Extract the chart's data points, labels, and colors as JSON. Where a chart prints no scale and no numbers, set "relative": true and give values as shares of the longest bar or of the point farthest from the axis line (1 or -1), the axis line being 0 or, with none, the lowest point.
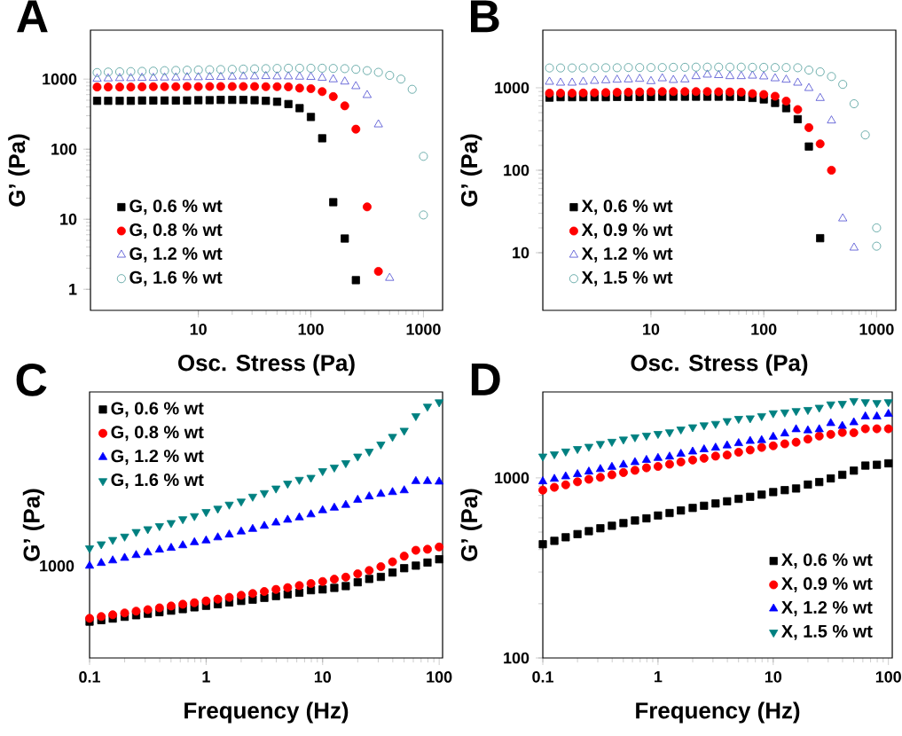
{
  "chart_data": [
    {
      "type": "scatter",
      "title": "A",
      "xlabel": "Osc. Stress (Pa)",
      "ylabel": "G’ (Pa)",
      "log": "xy",
      "legend": "bottom left",
      "xlim": [
        1.1,
        1480
      ],
      "ylim": [
        0.5,
        5000
      ],
      "xticks": [
        10,
        100,
        1000
      ],
      "yticks": [
        1,
        10,
        100,
        1000
      ],
      "series": [
        {
          "name": "G, 0.6 % wt",
          "color": "#000000",
          "marker": "square",
          "x": [
            1.26,
            1.58,
            2,
            2.51,
            3.16,
            3.98,
            5.01,
            6.31,
            7.94,
            10,
            12.6,
            15.8,
            20,
            25.1,
            31.6,
            39.8,
            50.1,
            63.1,
            79.4,
            100,
            126,
            158,
            200,
            251
          ],
          "values": [
            490,
            490,
            490,
            490,
            495,
            495,
            495,
            495,
            495,
            500,
            500,
            505,
            505,
            505,
            500,
            490,
            475,
            440,
            385,
            288,
            143,
            17.5,
            5.3,
            1.35
          ]
        },
        {
          "name": "G, 0.8 % wt",
          "color": "#ff0000",
          "marker": "circle",
          "x": [
            1.26,
            1.58,
            2,
            2.51,
            3.16,
            3.98,
            5.01,
            6.31,
            7.94,
            10,
            12.6,
            15.8,
            20,
            25.1,
            31.6,
            39.8,
            50.1,
            63.1,
            79.4,
            100,
            126,
            158,
            200,
            251,
            316,
            398
          ],
          "values": [
            770,
            770,
            770,
            770,
            775,
            780,
            780,
            780,
            785,
            780,
            785,
            785,
            785,
            785,
            785,
            780,
            780,
            775,
            743,
            730,
            663,
            563,
            415,
            193,
            15,
            1.8
          ]
        },
        {
          "name": "G, 1.2 % wt",
          "color": "#4a4ad0",
          "marker": "triangle-open",
          "x": [
            1.26,
            1.58,
            2,
            2.51,
            3.16,
            3.98,
            5.01,
            6.31,
            7.94,
            10,
            12.6,
            15.8,
            20,
            25.1,
            31.6,
            39.8,
            50.1,
            63.1,
            79.4,
            100,
            126,
            158,
            200,
            251,
            316,
            398,
            501
          ],
          "values": [
            1010,
            1020,
            1030,
            1030,
            1040,
            1040,
            1050,
            1050,
            1060,
            1060,
            1070,
            1070,
            1080,
            1090,
            1090,
            1100,
            1090,
            1090,
            1080,
            1070,
            1040,
            990,
            920,
            790,
            590,
            225,
            1.45
          ]
        },
        {
          "name": "G, 1.6 % wt",
          "color": "#4a9a98",
          "marker": "circle-open",
          "x": [
            1.26,
            1.58,
            2,
            2.51,
            3.16,
            3.98,
            5.01,
            6.31,
            7.94,
            10,
            12.6,
            15.8,
            20,
            25.1,
            31.6,
            39.8,
            50.1,
            63.1,
            79.4,
            100,
            126,
            158,
            200,
            251,
            316,
            398,
            501,
            631,
            794,
            1000,
            1000
          ],
          "values": [
            1240,
            1260,
            1270,
            1280,
            1290,
            1300,
            1320,
            1330,
            1340,
            1350,
            1360,
            1370,
            1380,
            1390,
            1400,
            1410,
            1420,
            1430,
            1430,
            1430,
            1430,
            1420,
            1410,
            1380,
            1320,
            1250,
            1130,
            1000,
            715,
            79,
            11.5
          ]
        }
      ]
    },
    {
      "type": "scatter",
      "title": "B",
      "xlabel": "Osc. Stress (Pa)",
      "ylabel": "G’ (Pa)",
      "log": "xy",
      "legend": "bottom left",
      "xlim": [
        1.1,
        1480
      ],
      "ylim": [
        2,
        5000
      ],
      "xticks": [
        10,
        100,
        1000
      ],
      "yticks": [
        10,
        100,
        1000
      ],
      "series": [
        {
          "name": "X, 0.6 % wt",
          "color": "#000000",
          "marker": "square",
          "x": [
            1.26,
            1.58,
            2,
            2.51,
            3.16,
            3.98,
            5.01,
            6.31,
            7.94,
            10,
            12.6,
            15.8,
            20,
            25.1,
            31.6,
            39.8,
            50.1,
            63.1,
            79.4,
            100,
            126,
            158,
            200,
            251,
            316
          ],
          "values": [
            760,
            770,
            770,
            770,
            770,
            770,
            775,
            775,
            775,
            775,
            780,
            780,
            780,
            780,
            780,
            780,
            780,
            775,
            753,
            723,
            655,
            566,
            416,
            194,
            15
          ]
        },
        {
          "name": "X, 0.9 % wt",
          "color": "#ff0000",
          "marker": "circle",
          "x": [
            1.26,
            1.58,
            2,
            2.51,
            3.16,
            3.98,
            5.01,
            6.31,
            7.94,
            10,
            12.6,
            15.8,
            20,
            25.1,
            31.6,
            39.8,
            50.1,
            63.1,
            79.4,
            100,
            126,
            158,
            200,
            251,
            316,
            398
          ],
          "values": [
            860,
            860,
            860,
            865,
            870,
            875,
            880,
            885,
            890,
            895,
            900,
            900,
            900,
            900,
            900,
            895,
            890,
            885,
            850,
            830,
            790,
            690,
            545,
            329,
            209,
            100
          ]
        },
        {
          "name": "X, 1.2 % wt",
          "color": "#4a4ad0",
          "marker": "triangle-open",
          "x": [
            1.26,
            1.58,
            2,
            2.51,
            3.16,
            3.98,
            5.01,
            6.31,
            7.94,
            10,
            12.6,
            15.8,
            20,
            25.1,
            31.6,
            39.8,
            50.1,
            63.1,
            79.4,
            100,
            126,
            158,
            200,
            251,
            316,
            398,
            501,
            631
          ],
          "values": [
            1180,
            1150,
            1150,
            1180,
            1210,
            1230,
            1250,
            1260,
            1280,
            1200,
            1300,
            1240,
            1260,
            1380,
            1440,
            1420,
            1380,
            1380,
            1400,
            1370,
            1300,
            1250,
            1150,
            990,
            750,
            400,
            26,
            11.5
          ]
        },
        {
          "name": "X, 1.5 % wt",
          "color": "#4a9a98",
          "marker": "circle-open",
          "x": [
            1.26,
            1.58,
            2,
            2.51,
            3.16,
            3.98,
            5.01,
            6.31,
            7.94,
            10,
            12.6,
            15.8,
            20,
            25.1,
            31.6,
            39.8,
            50.1,
            63.1,
            79.4,
            100,
            126,
            158,
            200,
            251,
            316,
            398,
            501,
            631,
            794,
            1000,
            1000
          ],
          "values": [
            1740,
            1740,
            1740,
            1740,
            1750,
            1750,
            1750,
            1760,
            1760,
            1760,
            1760,
            1770,
            1770,
            1780,
            1780,
            1780,
            1780,
            1780,
            1770,
            1770,
            1760,
            1760,
            1750,
            1640,
            1560,
            1370,
            1100,
            640,
            268,
            20,
            12
          ]
        }
      ]
    },
    {
      "type": "scatter",
      "title": "C",
      "xlabel": "Frequency (Hz)",
      "ylabel": "G’ (Pa)",
      "log": "x",
      "legend": "top left",
      "xlim": [
        0.1,
        107
      ],
      "xticks": [
        0.1,
        1,
        10,
        100
      ],
      "relative": true,
      "annotations": [
        {
          "text": "1000",
          "x": 0.1,
          "y": 0.36
        }
      ],
      "x": [
        0.1,
        0.126,
        0.158,
        0.2,
        0.251,
        0.316,
        0.398,
        0.501,
        0.631,
        0.794,
        1,
        1.26,
        1.58,
        2,
        2.51,
        3.16,
        3.98,
        5.01,
        6.31,
        7.94,
        10,
        12.6,
        15.8,
        20,
        25.1,
        31.6,
        39.8,
        50.1,
        63.1,
        79.4,
        100
      ],
      "series": [
        {
          "name": "G, 0.6 % wt",
          "color": "#000000",
          "marker": "square",
          "values": [
            0.142,
            0.148,
            0.154,
            0.161,
            0.167,
            0.173,
            0.179,
            0.185,
            0.191,
            0.198,
            0.204,
            0.21,
            0.217,
            0.223,
            0.228,
            0.235,
            0.242,
            0.249,
            0.255,
            0.265,
            0.268,
            0.274,
            0.281,
            0.296,
            0.309,
            0.317,
            0.334,
            0.351,
            0.361,
            0.373,
            0.386
          ]
        },
        {
          "name": "G, 0.8 % wt",
          "color": "#ff0000",
          "marker": "circle",
          "values": [
            0.155,
            0.162,
            0.169,
            0.176,
            0.183,
            0.189,
            0.196,
            0.203,
            0.21,
            0.216,
            0.223,
            0.23,
            0.237,
            0.245,
            0.252,
            0.26,
            0.268,
            0.275,
            0.283,
            0.291,
            0.299,
            0.308,
            0.316,
            0.329,
            0.342,
            0.357,
            0.376,
            0.398,
            0.421,
            0.425,
            0.434
          ]
        },
        {
          "name": "G, 1.2 % wt",
          "color": "#0000ff",
          "marker": "triangle",
          "values": [
            0.36,
            0.371,
            0.381,
            0.391,
            0.402,
            0.412,
            0.423,
            0.43,
            0.44,
            0.452,
            0.459,
            0.471,
            0.482,
            0.494,
            0.504,
            0.516,
            0.529,
            0.54,
            0.549,
            0.561,
            0.577,
            0.587,
            0.598,
            0.618,
            0.631,
            0.641,
            0.648,
            0.655,
            0.691,
            0.691,
            0.689
          ]
        },
        {
          "name": "G, 1.6 % wt",
          "color": "#008080",
          "marker": "triangle-down",
          "values": [
            0.429,
            0.445,
            0.462,
            0.475,
            0.493,
            0.504,
            0.516,
            0.528,
            0.543,
            0.555,
            0.571,
            0.584,
            0.6,
            0.612,
            0.631,
            0.645,
            0.663,
            0.682,
            0.697,
            0.705,
            0.731,
            0.745,
            0.762,
            0.788,
            0.807,
            0.835,
            0.865,
            0.889,
            0.946,
            0.983,
            1
          ]
        }
      ]
    },
    {
      "type": "scatter",
      "title": "D",
      "xlabel": "Frequency (Hz)",
      "ylabel": "G’ (Pa)",
      "log": "xy",
      "legend": "bottom right",
      "xlim": [
        0.1,
        108
      ],
      "ylim": [
        100,
        3000
      ],
      "xticks": [
        0.1,
        1,
        10,
        100
      ],
      "yticks": [
        100,
        1000
      ],
      "x": [
        0.1,
        0.126,
        0.158,
        0.2,
        0.251,
        0.316,
        0.398,
        0.501,
        0.631,
        0.794,
        1,
        1.26,
        1.58,
        2,
        2.51,
        3.16,
        3.98,
        5.01,
        6.31,
        7.94,
        10,
        12.6,
        15.8,
        20,
        25.1,
        31.6,
        39.8,
        50.1,
        63.1,
        79.4,
        100
      ],
      "series": [
        {
          "name": "X, 0.6 % wt",
          "color": "#000000",
          "marker": "square",
          "values": [
            428,
            447,
            468,
            487,
            506,
            525,
            542,
            561,
            580,
            596,
            618,
            638,
            659,
            681,
            700,
            721,
            741,
            765,
            785,
            807,
            834,
            855,
            873,
            918,
            948,
            993,
            1040,
            1097,
            1170,
            1182,
            1204
          ]
        },
        {
          "name": "X, 0.9 % wt",
          "color": "#ff0000",
          "marker": "circle",
          "values": [
            855,
            886,
            915,
            951,
            982,
            1007,
            1040,
            1070,
            1101,
            1137,
            1157,
            1191,
            1225,
            1256,
            1284,
            1320,
            1339,
            1388,
            1428,
            1475,
            1507,
            1545,
            1578,
            1641,
            1707,
            1744,
            1788,
            1781,
            1873,
            1873,
            1873
          ]
        },
        {
          "name": "X, 1.2 % wt",
          "color": "#0000ff",
          "marker": "triangle",
          "values": [
            955,
            986,
            1018,
            1047,
            1082,
            1117,
            1149,
            1182,
            1221,
            1256,
            1288,
            1311,
            1359,
            1398,
            1438,
            1469,
            1512,
            1556,
            1601,
            1618,
            1689,
            1762,
            1859,
            1833,
            1859,
            2011,
            1941,
            2032,
            2191,
            2191,
            2262
          ]
        },
        {
          "name": "X, 1.5 % wt",
          "color": "#008080",
          "marker": "triangle-down",
          "values": [
            1316,
            1354,
            1403,
            1449,
            1491,
            1545,
            1589,
            1635,
            1683,
            1719,
            1757,
            1794,
            1859,
            1913,
            1961,
            1997,
            2070,
            2130,
            2145,
            2207,
            2287,
            2312,
            2353,
            2387,
            2456,
            2563,
            2581,
            2675,
            2637,
            2608,
            2637
          ]
        }
      ]
    }
  ]
}
